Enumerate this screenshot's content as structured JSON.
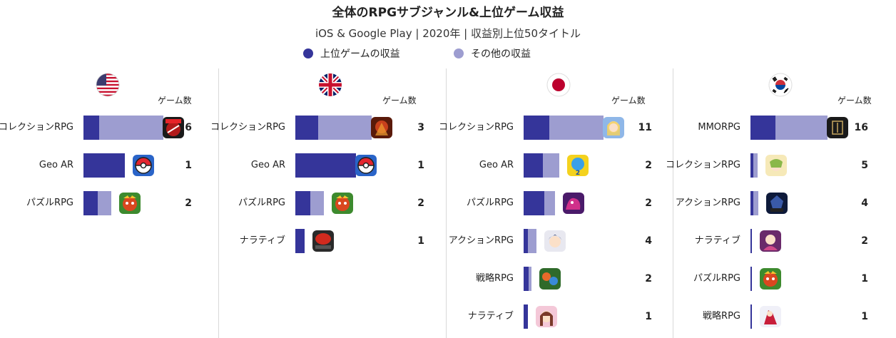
{
  "title": "全体のRPGサブジャンル&上位ゲーム収益",
  "subtitle": "iOS & Google Play | 2020年 | 収益別上位50タイトル",
  "legend": [
    {
      "label": "上位ゲームの収益",
      "color": "#35359a"
    },
    {
      "label": "その他の収益",
      "color": "#9d9dd0"
    }
  ],
  "count_header": "ゲーム数",
  "chart_data": [
    {
      "type": "bar",
      "country": "US",
      "flag_icon": "us-flag-icon",
      "xlim": [
        0,
        1
      ],
      "categories": [
        "コレクションRPG",
        "Geo AR",
        "パズルRPG"
      ],
      "series": [
        {
          "name": "上位ゲームの収益",
          "values": [
            0.2,
            0.52,
            0.18
          ]
        },
        {
          "name": "その他の収益",
          "values": [
            0.8,
            0.0,
            0.17
          ]
        }
      ],
      "game_counts": [
        6,
        1,
        2
      ],
      "app_icons": [
        "marvel-app-icon",
        "pokeball-app-icon",
        "puzzle-dragons-app-icon"
      ]
    },
    {
      "type": "bar",
      "country": "UK",
      "flag_icon": "uk-flag-icon",
      "xlim": [
        0,
        1
      ],
      "categories": [
        "コレクションRPG",
        "Geo AR",
        "パズルRPG",
        "ナラティブ"
      ],
      "series": [
        {
          "name": "上位ゲームの収益",
          "values": [
            0.3,
            0.79,
            0.2,
            0.12
          ]
        },
        {
          "name": "その他の収益",
          "values": [
            0.7,
            0.0,
            0.17,
            0.0
          ]
        }
      ],
      "game_counts": [
        3,
        1,
        2,
        1
      ],
      "app_icons": [
        "warrior-app-icon",
        "pokeball-app-icon",
        "puzzle-dragons-app-icon",
        "story-app-icon"
      ]
    },
    {
      "type": "bar",
      "country": "JP",
      "flag_icon": "jp-flag-icon",
      "xlim": [
        0,
        1
      ],
      "categories": [
        "コレクションRPG",
        "Geo AR",
        "パズルRPG",
        "アクションRPG",
        "戦略RPG",
        "ナラティブ"
      ],
      "series": [
        {
          "name": "上位ゲームの収益",
          "values": [
            0.32,
            0.24,
            0.26,
            0.05,
            0.06,
            0.05
          ]
        },
        {
          "name": "その他の収益",
          "values": [
            0.68,
            0.21,
            0.13,
            0.11,
            0.04,
            0.0
          ]
        }
      ],
      "game_counts": [
        11,
        2,
        2,
        4,
        2,
        1
      ],
      "app_icons": [
        "anime-girl-app-icon",
        "dq-walk-app-icon",
        "dragon-app-icon",
        "anime-hero-app-icon",
        "strategy-app-icon",
        "girl-portrait-app-icon"
      ]
    },
    {
      "type": "bar",
      "country": "KR",
      "flag_icon": "kr-flag-icon",
      "xlim": [
        0,
        1
      ],
      "categories": [
        "MMORPG",
        "コレクションRPG",
        "アクションRPG",
        "ナラティブ",
        "パズルRPG",
        "戦略RPG"
      ],
      "series": [
        {
          "name": "上位ゲームの収益",
          "values": [
            0.32,
            0.04,
            0.04,
            0.02,
            0.02,
            0.02
          ]
        },
        {
          "name": "その他の収益",
          "values": [
            0.68,
            0.05,
            0.06,
            0.0,
            0.0,
            0.0
          ]
        }
      ],
      "game_counts": [
        16,
        5,
        4,
        2,
        1,
        1
      ],
      "app_icons": [
        "lineage-app-icon",
        "elf-app-icon",
        "dark-knight-app-icon",
        "heroine-app-icon",
        "puzzle-dragons-app-icon",
        "fighter-app-icon"
      ]
    }
  ]
}
